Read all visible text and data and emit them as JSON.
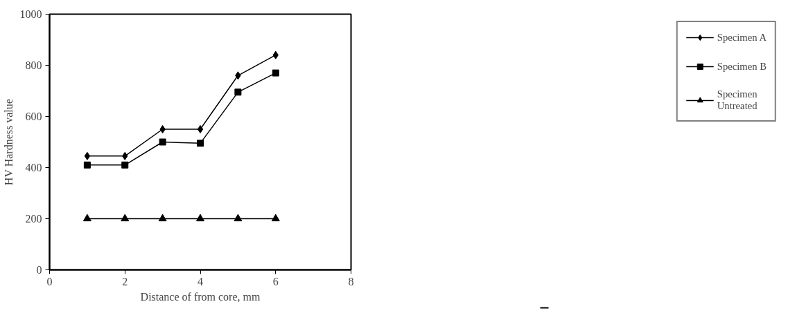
{
  "chart_data": {
    "type": "line",
    "xlabel": "Distance of from core, mm",
    "ylabel": "HV Hardness value",
    "x": [
      1,
      2,
      3,
      4,
      5,
      6
    ],
    "series": [
      {
        "name": "Specimen A",
        "color": "#000000",
        "marker": "diamond",
        "values": [
          445,
          445,
          550,
          550,
          760,
          840
        ]
      },
      {
        "name": "Specimen B",
        "color": "#000000",
        "marker": "square",
        "values": [
          410,
          410,
          500,
          495,
          695,
          770
        ]
      },
      {
        "name": "Specimen\nUntreated",
        "color": "#000000",
        "marker": "triangle",
        "values": [
          200,
          200,
          200,
          200,
          200,
          200
        ]
      }
    ],
    "xlim": [
      0,
      8
    ],
    "ylim": [
      0,
      1000
    ],
    "xticks": [
      0,
      2,
      4,
      6,
      8
    ],
    "yticks": [
      0,
      200,
      400,
      600,
      800,
      1000
    ],
    "grid": false,
    "legend": "right",
    "line_style": "solid"
  }
}
